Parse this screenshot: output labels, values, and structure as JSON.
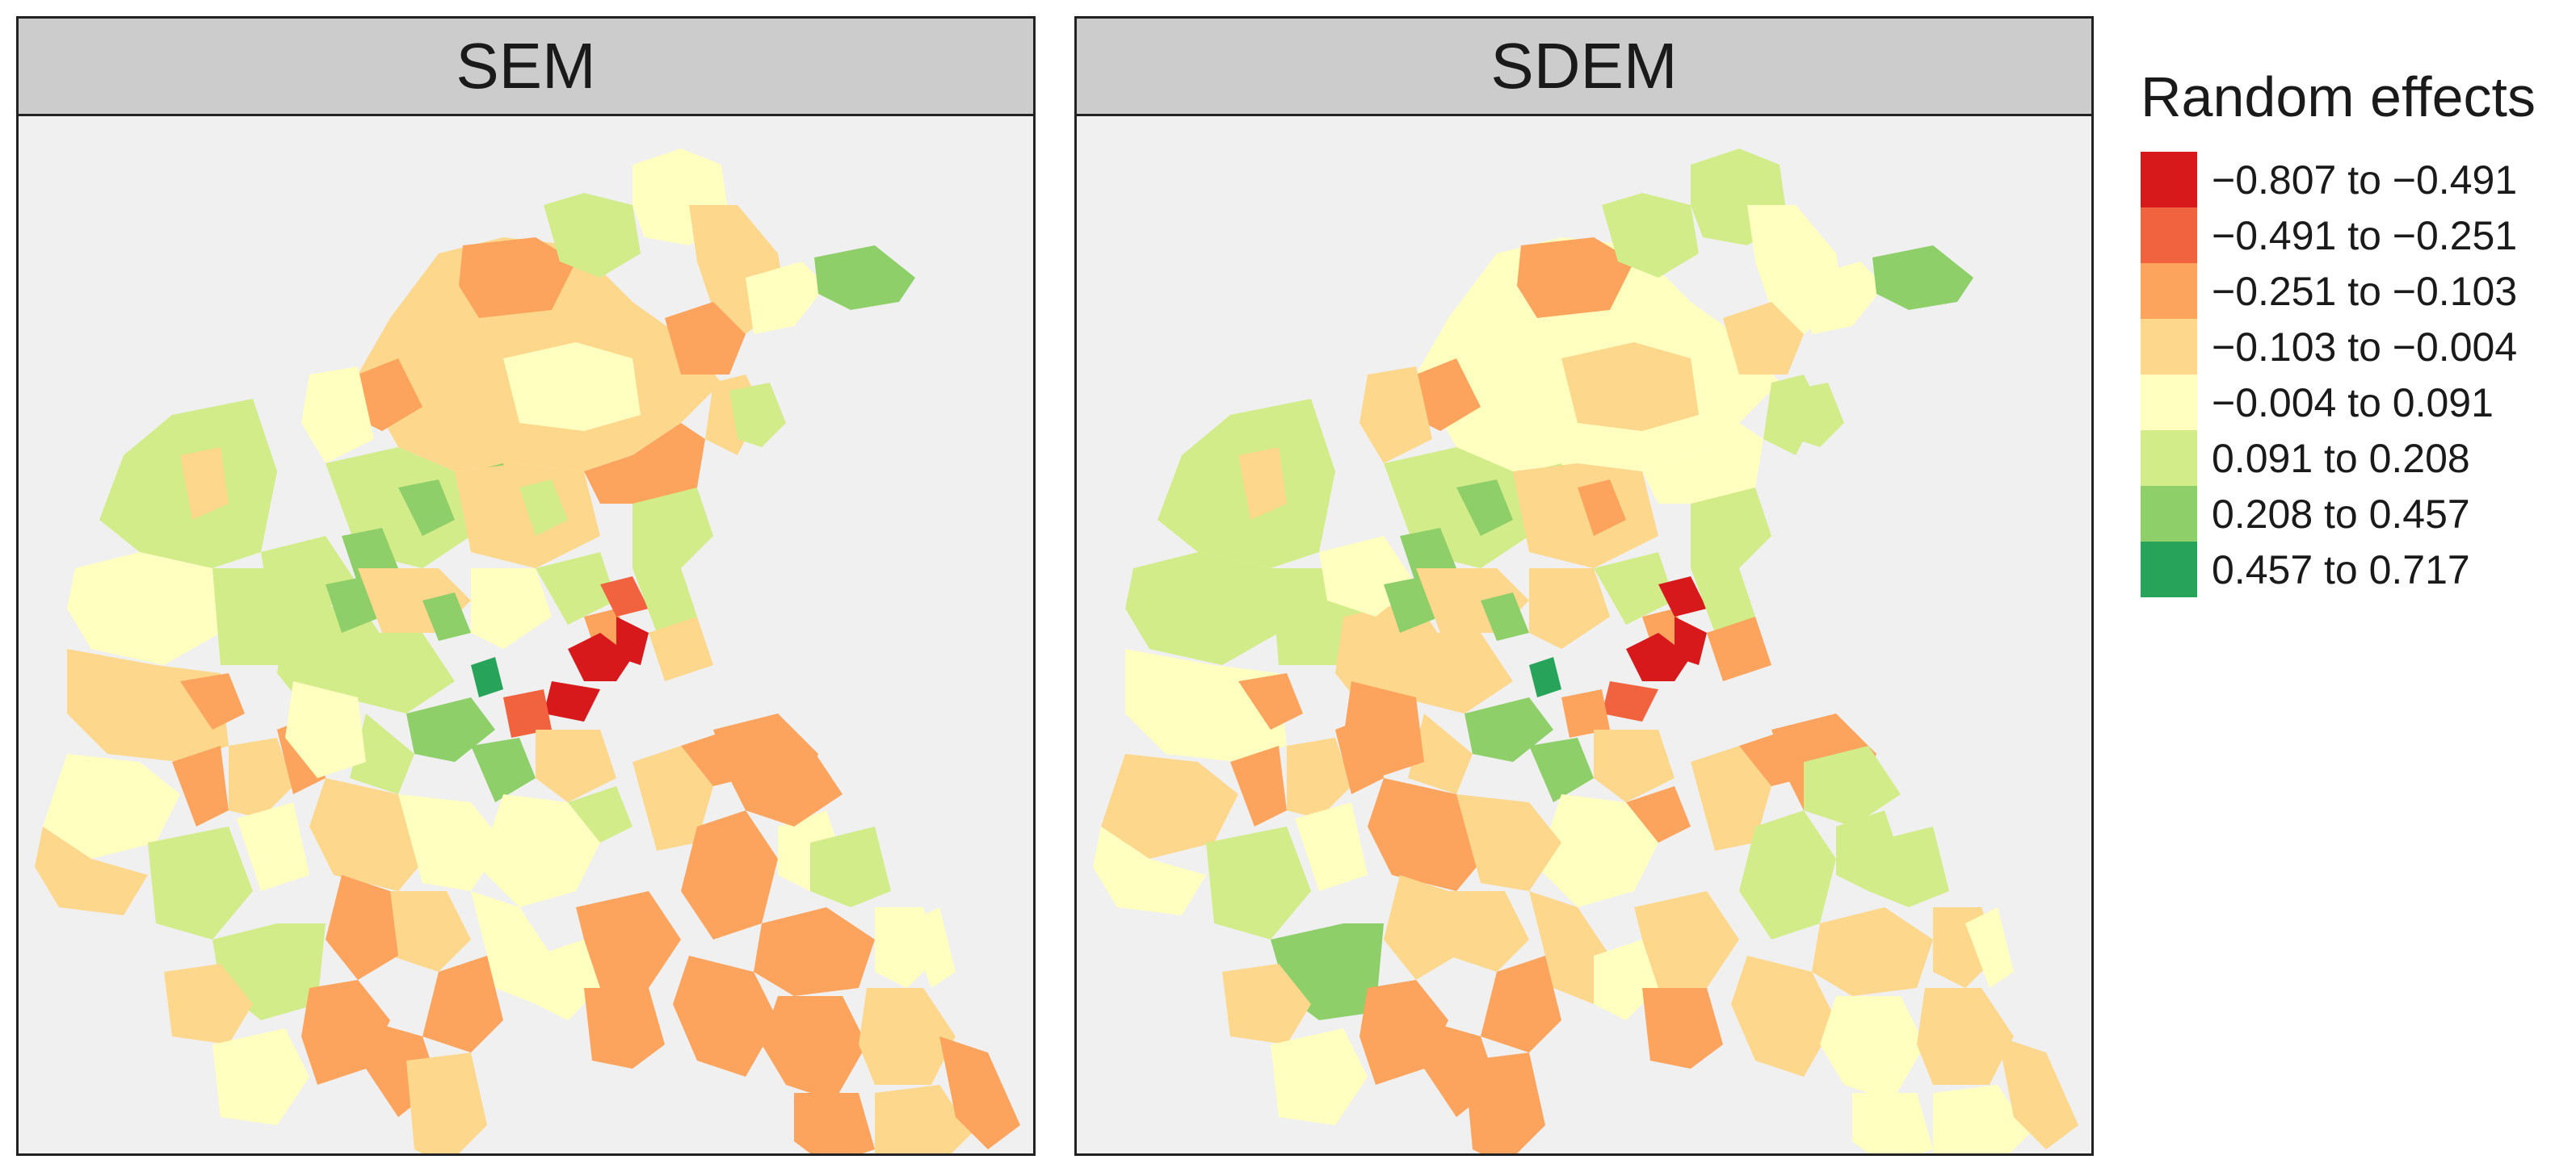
{
  "panels": [
    {
      "title": "SEM"
    },
    {
      "title": "SDEM"
    }
  ],
  "legend": {
    "title": "Random effects",
    "items": [
      {
        "label": "−0.807 to −0.491",
        "color": "#d7191c"
      },
      {
        "label": "−0.491 to −0.251",
        "color": "#f1623f"
      },
      {
        "label": "−0.251 to −0.103",
        "color": "#fca35d"
      },
      {
        "label": "−0.103 to −0.004",
        "color": "#fdd78b"
      },
      {
        "label": "−0.004 to 0.091",
        "color": "#ffffbf"
      },
      {
        "label": "0.091 to 0.208",
        "color": "#d3ec8a"
      },
      {
        "label": "0.208 to 0.457",
        "color": "#8fcf6a"
      },
      {
        "label": "0.457 to 0.717",
        "color": "#28a35a"
      }
    ]
  },
  "colors": {
    "panel_background": "#f0f0f0",
    "strip_background": "#cccccc"
  }
}
